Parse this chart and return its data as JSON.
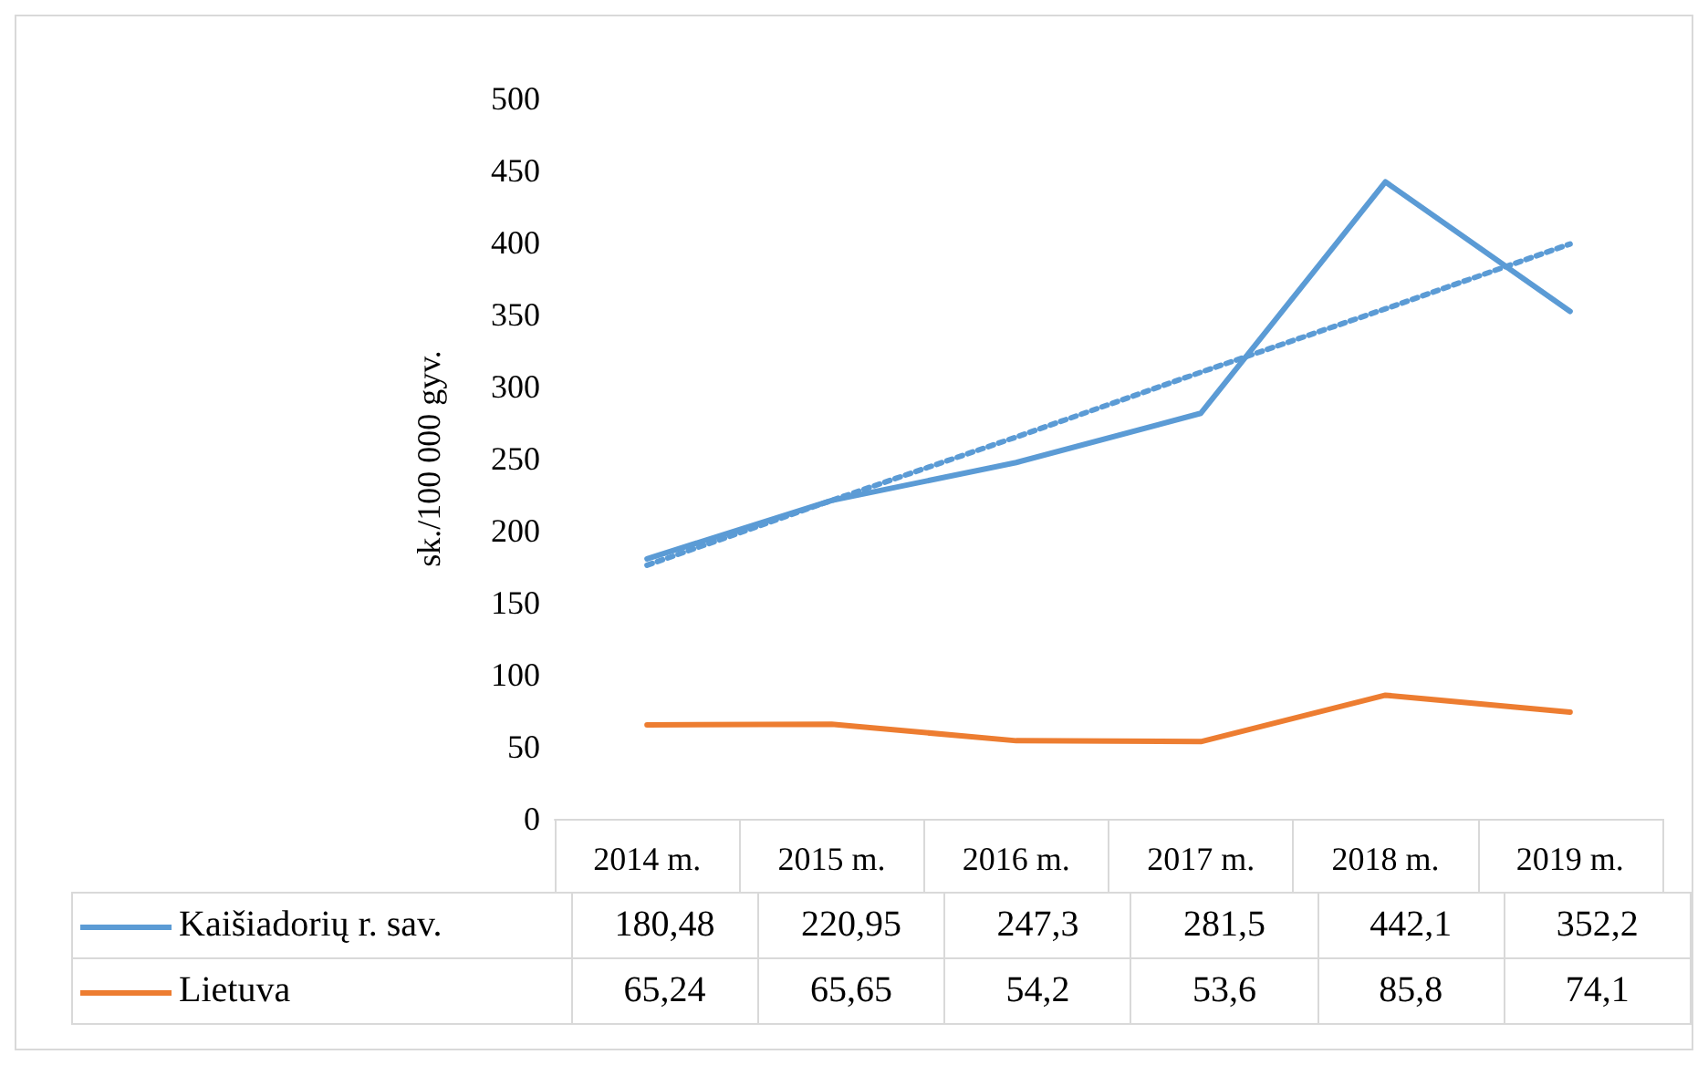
{
  "chart_data": {
    "type": "line",
    "ylabel": "sk./100 000 gyv.",
    "categories": [
      "2014 m.",
      "2015 m.",
      "2016 m.",
      "2017 m.",
      "2018 m.",
      "2019 m."
    ],
    "ylim": [
      0,
      500
    ],
    "yticks": [
      0,
      50,
      100,
      150,
      200,
      250,
      300,
      350,
      400,
      450,
      500
    ],
    "legend": "bottom",
    "marker": "none",
    "line_style": "solid",
    "series": [
      {
        "name": "Kaišiadorių r. sav.",
        "color": "#5b9bd5",
        "values": [
          180.48,
          220.95,
          247.3,
          281.5,
          442.1,
          352.2
        ],
        "value_labels": [
          "180,48",
          "220,95",
          "247,3",
          "281,5",
          "442,1",
          "352,2"
        ]
      },
      {
        "name": "Lietuva",
        "color": "#ed7d31",
        "values": [
          65.24,
          65.65,
          54.2,
          53.6,
          85.8,
          74.1
        ],
        "value_labels": [
          "65,24",
          "65,65",
          "54,2",
          "53,6",
          "85,8",
          "74,1"
        ]
      },
      {
        "type": "line",
        "color": "#5b9bd5",
        "line_style": "dotted",
        "values": [
          176,
          221,
          265,
          310,
          354,
          399
        ]
      }
    ]
  }
}
